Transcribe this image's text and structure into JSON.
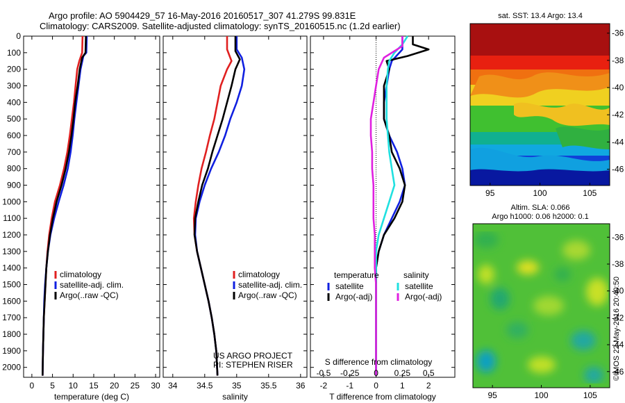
{
  "header": {
    "line1": "Argo profile: AO 5904429_57 16-May-2016 20160517_307 41.279S 99.831E",
    "line2": "Climatology: CARS2009. Satellite-adjusted climatology: synTS_20160515.nc (1.2d earlier)"
  },
  "colors": {
    "climatology": "#e02020",
    "satellite": "#1020e0",
    "argo": "#000000",
    "cyan": "#20e0e0",
    "magenta": "#e020e0"
  },
  "chart_data": [
    {
      "type": "line",
      "id": "temperature",
      "xlabel": "temperature (deg C)",
      "xlim": [
        -2,
        31
      ],
      "ylim": [
        0,
        2060
      ],
      "xticks": [
        0,
        5,
        10,
        15,
        20,
        25,
        30
      ],
      "yticks": [
        0,
        100,
        200,
        300,
        400,
        500,
        600,
        700,
        800,
        900,
        1000,
        1100,
        1200,
        1300,
        1400,
        1500,
        1600,
        1700,
        1800,
        1900,
        2000
      ],
      "legend": [
        "climatology",
        "satellite-adj. clim.",
        "Argo(..raw -QC)"
      ],
      "legend_position": "lower-right",
      "series": [
        {
          "name": "climatology",
          "color": "#e02020",
          "points": [
            [
              12.3,
              0
            ],
            [
              12.2,
              100
            ],
            [
              11.5,
              150
            ],
            [
              11.0,
              200
            ],
            [
              10.6,
              300
            ],
            [
              10.2,
              400
            ],
            [
              9.7,
              500
            ],
            [
              9.2,
              600
            ],
            [
              8.6,
              700
            ],
            [
              7.8,
              800
            ],
            [
              6.8,
              900
            ],
            [
              5.6,
              1000
            ],
            [
              4.8,
              1100
            ],
            [
              4.2,
              1200
            ],
            [
              3.8,
              1300
            ],
            [
              3.5,
              1400
            ],
            [
              3.3,
              1500
            ],
            [
              3.1,
              1600
            ],
            [
              2.9,
              1700
            ],
            [
              2.8,
              1800
            ],
            [
              2.7,
              1900
            ],
            [
              2.6,
              2050
            ]
          ]
        },
        {
          "name": "satellite-adj. clim.",
          "color": "#1020e0",
          "points": [
            [
              13.3,
              0
            ],
            [
              13.2,
              100
            ],
            [
              12.5,
              120
            ],
            [
              11.8,
              200
            ],
            [
              11.3,
              300
            ],
            [
              10.8,
              400
            ],
            [
              10.3,
              500
            ],
            [
              9.9,
              600
            ],
            [
              9.4,
              700
            ],
            [
              8.7,
              800
            ],
            [
              7.7,
              900
            ],
            [
              6.5,
              1000
            ],
            [
              5.4,
              1100
            ],
            [
              4.5,
              1200
            ],
            [
              3.9,
              1300
            ],
            [
              3.5,
              1400
            ],
            [
              3.2,
              1500
            ],
            [
              3.0,
              1600
            ],
            [
              2.9,
              1700
            ],
            [
              2.8,
              1800
            ],
            [
              2.7,
              1900
            ],
            [
              2.6,
              2050
            ]
          ]
        },
        {
          "name": "Argo(..raw -QC)",
          "color": "#000000",
          "points": [
            [
              13.1,
              0
            ],
            [
              13.0,
              100
            ],
            [
              12.2,
              130
            ],
            [
              11.6,
              200
            ],
            [
              11.1,
              300
            ],
            [
              10.5,
              400
            ],
            [
              10.1,
              500
            ],
            [
              9.6,
              600
            ],
            [
              9.0,
              700
            ],
            [
              8.2,
              800
            ],
            [
              7.2,
              900
            ],
            [
              6.0,
              1000
            ],
            [
              5.1,
              1100
            ],
            [
              4.4,
              1200
            ],
            [
              3.9,
              1300
            ],
            [
              3.5,
              1400
            ],
            [
              3.3,
              1500
            ],
            [
              3.1,
              1600
            ],
            [
              2.9,
              1700
            ],
            [
              2.8,
              1800
            ],
            [
              2.7,
              1900
            ],
            [
              2.6,
              2050
            ]
          ]
        }
      ]
    },
    {
      "type": "line",
      "id": "salinity",
      "xlabel": "salinity",
      "xlim": [
        33.85,
        36.1
      ],
      "ylim": [
        0,
        2060
      ],
      "xticks": [
        34,
        34.5,
        35,
        35.5,
        36
      ],
      "legend": [
        "climatology",
        "satellite-adj. clim.",
        "Argo(..raw -QC)"
      ],
      "legend_position": "lower-right",
      "annotation": [
        "US ARGO PROJECT",
        "PI: STEPHEN RISER"
      ],
      "series": [
        {
          "name": "climatology",
          "color": "#e02020",
          "points": [
            [
              34.85,
              0
            ],
            [
              34.85,
              80
            ],
            [
              34.92,
              150
            ],
            [
              34.85,
              200
            ],
            [
              34.75,
              300
            ],
            [
              34.65,
              500
            ],
            [
              34.58,
              600
            ],
            [
              34.52,
              700
            ],
            [
              34.45,
              800
            ],
            [
              34.4,
              900
            ],
            [
              34.36,
              1000
            ],
            [
              34.33,
              1100
            ],
            [
              34.34,
              1200
            ],
            [
              34.38,
              1300
            ],
            [
              34.44,
              1400
            ],
            [
              34.5,
              1500
            ],
            [
              34.56,
              1600
            ],
            [
              34.61,
              1700
            ],
            [
              34.65,
              1800
            ],
            [
              34.68,
              1900
            ],
            [
              34.7,
              2050
            ]
          ]
        },
        {
          "name": "satellite-adj. clim.",
          "color": "#1020e0",
          "points": [
            [
              35.0,
              0
            ],
            [
              35.0,
              80
            ],
            [
              35.08,
              130
            ],
            [
              35.12,
              200
            ],
            [
              35.08,
              300
            ],
            [
              35.0,
              400
            ],
            [
              34.9,
              500
            ],
            [
              34.82,
              600
            ],
            [
              34.72,
              700
            ],
            [
              34.6,
              800
            ],
            [
              34.5,
              900
            ],
            [
              34.42,
              1000
            ],
            [
              34.36,
              1100
            ],
            [
              34.35,
              1200
            ],
            [
              34.38,
              1300
            ],
            [
              34.44,
              1400
            ],
            [
              34.5,
              1500
            ],
            [
              34.56,
              1600
            ],
            [
              34.61,
              1700
            ],
            [
              34.65,
              1800
            ],
            [
              34.68,
              1900
            ],
            [
              34.7,
              2050
            ]
          ]
        },
        {
          "name": "Argo(..raw -QC)",
          "color": "#000000",
          "points": [
            [
              34.98,
              0
            ],
            [
              34.98,
              90
            ],
            [
              35.05,
              140
            ],
            [
              34.98,
              200
            ],
            [
              34.92,
              300
            ],
            [
              34.85,
              400
            ],
            [
              34.78,
              500
            ],
            [
              34.7,
              600
            ],
            [
              34.62,
              700
            ],
            [
              34.55,
              800
            ],
            [
              34.46,
              900
            ],
            [
              34.4,
              1000
            ],
            [
              34.35,
              1100
            ],
            [
              34.34,
              1200
            ],
            [
              34.38,
              1300
            ],
            [
              34.44,
              1400
            ],
            [
              34.5,
              1500
            ],
            [
              34.56,
              1600
            ],
            [
              34.61,
              1700
            ],
            [
              34.65,
              1800
            ],
            [
              34.68,
              1900
            ],
            [
              34.7,
              2050
            ]
          ]
        }
      ]
    },
    {
      "type": "line",
      "id": "difference",
      "xlabel": "T difference from climatology",
      "xlabel_top": "S difference from climatology",
      "xlim": [
        -2.5,
        3.0
      ],
      "ylim": [
        0,
        2060
      ],
      "xticks": [
        -2,
        -1,
        0,
        1,
        2
      ],
      "top_ticks": [
        {
          "label": "-0.5",
          "x": -2
        },
        {
          "label": "-0.25",
          "x": -1
        },
        {
          "label": "0",
          "x": 0
        },
        {
          "label": "0.25",
          "x": 1
        },
        {
          "label": "0.5",
          "x": 2
        }
      ],
      "legend_groups": [
        {
          "title": "temperature",
          "items": [
            {
              "label": "satellite",
              "color": "#1020e0"
            },
            {
              "label": "Argo(-adj)",
              "color": "#000000"
            }
          ]
        },
        {
          "title": "salinity",
          "items": [
            {
              "label": "satellite",
              "color": "#20e0e0"
            },
            {
              "label": "Argo(-adj)",
              "color": "#e020e0"
            }
          ]
        }
      ],
      "series": [
        {
          "name": "temperature satellite",
          "color": "#1020e0",
          "points": [
            [
              1.0,
              0
            ],
            [
              1.0,
              80
            ],
            [
              0.6,
              150
            ],
            [
              0.5,
              200
            ],
            [
              0.3,
              400
            ],
            [
              0.3,
              500
            ],
            [
              0.5,
              600
            ],
            [
              0.8,
              700
            ],
            [
              1.0,
              800
            ],
            [
              1.1,
              900
            ],
            [
              0.9,
              1000
            ],
            [
              0.6,
              1100
            ],
            [
              0.3,
              1200
            ],
            [
              0.1,
              1300
            ],
            [
              0,
              1400
            ],
            [
              0,
              2050
            ]
          ]
        },
        {
          "name": "temperature Argo(-adj)",
          "color": "#000000",
          "points": [
            [
              1.4,
              0
            ],
            [
              1.4,
              50
            ],
            [
              2.0,
              80
            ],
            [
              1.2,
              120
            ],
            [
              0.4,
              150
            ],
            [
              0.5,
              200
            ],
            [
              0.3,
              300
            ],
            [
              0.3,
              400
            ],
            [
              0.3,
              500
            ],
            [
              0.5,
              600
            ],
            [
              0.6,
              700
            ],
            [
              0.9,
              800
            ],
            [
              1.1,
              900
            ],
            [
              1.0,
              1000
            ],
            [
              0.7,
              1100
            ],
            [
              0.3,
              1200
            ],
            [
              0.1,
              1300
            ],
            [
              0,
              1400
            ],
            [
              0,
              2050
            ]
          ]
        },
        {
          "name": "salinity satellite",
          "color": "#20e0e0",
          "points": [
            [
              1.2,
              0
            ],
            [
              1.0,
              50
            ],
            [
              0.7,
              100
            ],
            [
              0.5,
              150
            ],
            [
              0.45,
              200
            ],
            [
              0.4,
              300
            ],
            [
              0.4,
              500
            ],
            [
              0.45,
              600
            ],
            [
              0.5,
              700
            ],
            [
              0.6,
              800
            ],
            [
              0.7,
              900
            ],
            [
              0.5,
              1000
            ],
            [
              0.3,
              1100
            ],
            [
              0.1,
              1200
            ],
            [
              0,
              1300
            ],
            [
              0,
              2050
            ]
          ]
        },
        {
          "name": "salinity Argo(-adj)",
          "color": "#e020e0",
          "points": [
            [
              1.0,
              0
            ],
            [
              1.0,
              60
            ],
            [
              0.3,
              130
            ],
            [
              0.1,
              200
            ],
            [
              0,
              300
            ],
            [
              -0.1,
              400
            ],
            [
              -0.2,
              500
            ],
            [
              -0.2,
              600
            ],
            [
              -0.15,
              700
            ],
            [
              -0.15,
              800
            ],
            [
              -0.1,
              900
            ],
            [
              -0.1,
              1000
            ],
            [
              -0.1,
              1100
            ],
            [
              -0.05,
              1200
            ],
            [
              -0.05,
              1400
            ],
            [
              0,
              1500
            ],
            [
              0,
              2050
            ]
          ]
        }
      ]
    },
    {
      "type": "heatmap",
      "id": "sst_map",
      "title": "sat. SST: 13.4 Argo: 13.4",
      "xlim": [
        93,
        107
      ],
      "ylim": [
        -47.2,
        -35.3
      ],
      "xticks": [
        95,
        100,
        105
      ],
      "yticks": [
        -36,
        -38,
        -40,
        -42,
        -44,
        -46
      ]
    },
    {
      "type": "heatmap",
      "id": "sla_map",
      "title_lines": [
        "Altim. SLA: 0.066",
        "Argo h1000: 0.06 h2000: 0.1"
      ],
      "xlim": [
        93,
        107
      ],
      "ylim": [
        -47.2,
        -35.0
      ],
      "xticks": [
        95,
        100,
        105
      ],
      "yticks": [
        -36,
        -38,
        -40,
        -42,
        -44,
        -46
      ]
    }
  ],
  "credit": "©IMOS 22-May-2016 20:40:50"
}
